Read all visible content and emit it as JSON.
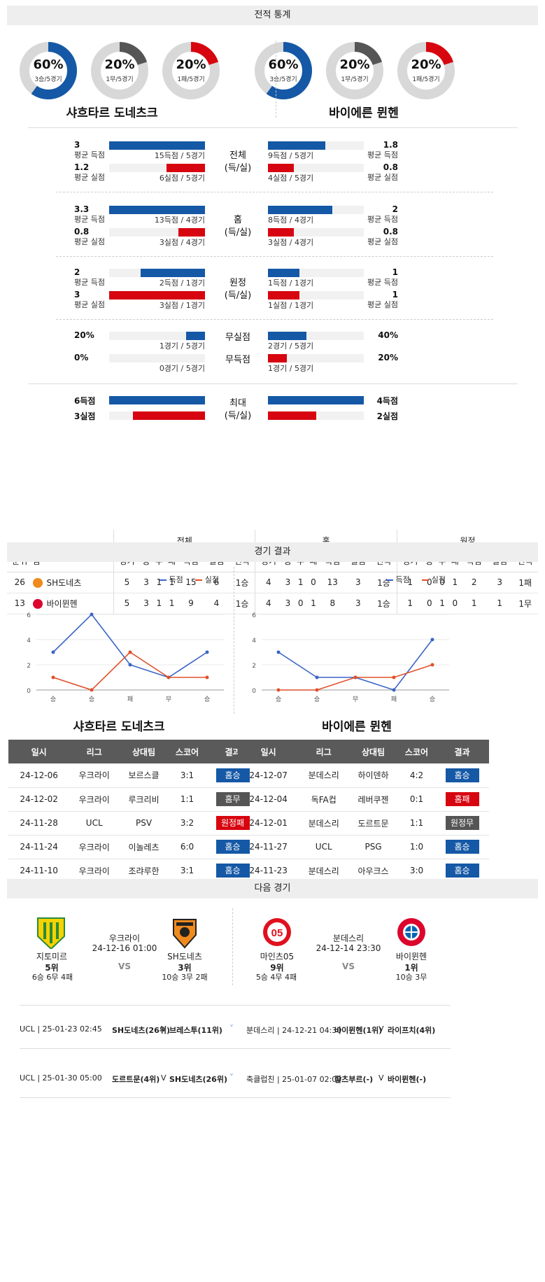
{
  "sections": {
    "stats": "전적 통계",
    "results": "경기 결과",
    "next": "다음 경기"
  },
  "donuts": {
    "home": [
      {
        "pct": "60%",
        "sub": "3승/5경기",
        "value": 0.6,
        "color": "#1558a6"
      },
      {
        "pct": "20%",
        "sub": "1무/5경기",
        "value": 0.2,
        "color": "#555555"
      },
      {
        "pct": "20%",
        "sub": "1패/5경기",
        "value": 0.2,
        "color": "#d7050f"
      }
    ],
    "away": [
      {
        "pct": "60%",
        "sub": "3승/5경기",
        "value": 0.6,
        "color": "#1558a6"
      },
      {
        "pct": "20%",
        "sub": "1무/5경기",
        "value": 0.2,
        "color": "#555555"
      },
      {
        "pct": "20%",
        "sub": "1패/5경기",
        "value": 0.2,
        "color": "#d7050f"
      }
    ]
  },
  "teams": {
    "home": "샤흐타르 도네츠크",
    "away": "바이에른 뮌헨"
  },
  "groups": [
    {
      "label": "전체\n(득/실)",
      "rows": [
        {
          "hnum": "3",
          "hlbl": "평균 득점",
          "hcap": "15득점 / 5경기",
          "hval": 1.0,
          "anum": "1.8",
          "albl": "평균 득점",
          "acap": "9득점 / 5경기",
          "aval": 0.6,
          "color": "blue"
        },
        {
          "hnum": "1.2",
          "hlbl": "평균 실점",
          "hcap": "6실점 / 5경기",
          "hval": 0.4,
          "anum": "0.8",
          "albl": "평균 실점",
          "acap": "4실점 / 5경기",
          "aval": 0.27,
          "color": "red"
        }
      ]
    },
    {
      "label": "홈\n(득/실)",
      "rows": [
        {
          "hnum": "3.3",
          "hlbl": "평균 득점",
          "hcap": "13득점 / 4경기",
          "hval": 1.0,
          "anum": "2",
          "albl": "평균 득점",
          "acap": "8득점 / 4경기",
          "aval": 0.67,
          "color": "blue"
        },
        {
          "hnum": "0.8",
          "hlbl": "평균 실점",
          "hcap": "3실점 / 4경기",
          "hval": 0.28,
          "anum": "0.8",
          "albl": "평균 실점",
          "acap": "3실점 / 4경기",
          "aval": 0.27,
          "color": "red"
        }
      ]
    },
    {
      "label": "원정\n(득/실)",
      "rows": [
        {
          "hnum": "2",
          "hlbl": "평균 득점",
          "hcap": "2득점 / 1경기",
          "hval": 0.67,
          "anum": "1",
          "albl": "평균 득점",
          "acap": "1득점 / 1경기",
          "aval": 0.33,
          "color": "blue"
        },
        {
          "hnum": "3",
          "hlbl": "평균 실점",
          "hcap": "3실점 / 1경기",
          "hval": 1.0,
          "anum": "1",
          "albl": "평균 실점",
          "acap": "1실점 / 1경기",
          "aval": 0.33,
          "color": "red"
        }
      ]
    },
    {
      "label": "",
      "rows": [
        {
          "mid": "무실점",
          "hnum": "20%",
          "hlbl": "",
          "hcap": "1경기 / 5경기",
          "hval": 0.2,
          "anum": "40%",
          "albl": "",
          "acap": "2경기 / 5경기",
          "aval": 0.4,
          "color": "blue"
        },
        {
          "mid": "무득점",
          "hnum": "0%",
          "hlbl": "",
          "hcap": "0경기 / 5경기",
          "hval": 0,
          "anum": "20%",
          "albl": "",
          "acap": "1경기 / 5경기",
          "aval": 0.2,
          "color": "red"
        }
      ]
    }
  ],
  "maxrow": {
    "label": "최대\n(득/실)",
    "h_goals": "6득점",
    "h_conc": "3실점",
    "a_goals": "4득점",
    "a_conc": "2실점",
    "h_gval": 1.0,
    "h_cval": 0.75,
    "a_gval": 1.0,
    "a_cval": 0.5
  },
  "standings": {
    "groups": [
      "전체",
      "홈",
      "원정"
    ],
    "cols": [
      "순위",
      "팀",
      "경기",
      "승",
      "무",
      "패",
      "득점",
      "실점",
      "연속",
      "경기",
      "승",
      "무",
      "패",
      "득점",
      "실점",
      "연속",
      "경기",
      "승",
      "무",
      "패",
      "득점",
      "실점",
      "연속"
    ],
    "rows": [
      {
        "rank": "26",
        "team": "SH도네츠",
        "vals": [
          "5",
          "3",
          "1",
          "1",
          "15",
          "6",
          "1승",
          "4",
          "3",
          "1",
          "0",
          "13",
          "3",
          "1승",
          "1",
          "0",
          "0",
          "1",
          "2",
          "3",
          "1패"
        ]
      },
      {
        "rank": "13",
        "team": "바이뮌헨",
        "vals": [
          "5",
          "3",
          "1",
          "1",
          "9",
          "4",
          "1승",
          "4",
          "3",
          "0",
          "1",
          "8",
          "3",
          "1승",
          "1",
          "0",
          "1",
          "0",
          "1",
          "1",
          "1무"
        ]
      }
    ]
  },
  "legend": {
    "goals": "득점",
    "conceded": "실점"
  },
  "chart_data": [
    {
      "type": "line",
      "categories": [
        "승",
        "승",
        "패",
        "무",
        "승"
      ],
      "series": [
        {
          "name": "득점",
          "values": [
            3,
            6,
            2,
            1,
            3
          ]
        },
        {
          "name": "실점",
          "values": [
            1,
            0,
            3,
            1,
            1
          ]
        }
      ],
      "yticks": [
        "0",
        "2",
        "4",
        "6"
      ],
      "ylim": [
        0,
        6
      ]
    },
    {
      "type": "line",
      "categories": [
        "승",
        "승",
        "무",
        "패",
        "승"
      ],
      "series": [
        {
          "name": "득점",
          "values": [
            3,
            1,
            1,
            0,
            4
          ]
        },
        {
          "name": "실점",
          "values": [
            0,
            0,
            1,
            1,
            2
          ]
        }
      ],
      "yticks": [
        "0",
        "2",
        "4",
        "6"
      ],
      "ylim": [
        0,
        6
      ]
    }
  ],
  "results": {
    "headers": [
      "일시",
      "리그",
      "상대팀",
      "스코어",
      "결과"
    ],
    "home": [
      {
        "date": "24-12-06",
        "league": "우크라이",
        "opp": "보르스클",
        "score": "3:1",
        "result": "홈승",
        "c": "blue"
      },
      {
        "date": "24-12-02",
        "league": "우크라이",
        "opp": "루크리비",
        "score": "1:1",
        "result": "홈무",
        "c": "gray"
      },
      {
        "date": "24-11-28",
        "league": "UCL",
        "opp": "PSV",
        "score": "3:2",
        "result": "원정패",
        "c": "red"
      },
      {
        "date": "24-11-24",
        "league": "우크라이",
        "opp": "이놀레츠",
        "score": "6:0",
        "result": "홈승",
        "c": "blue"
      },
      {
        "date": "24-11-10",
        "league": "우크라이",
        "opp": "조랴루한",
        "score": "3:1",
        "result": "홈승",
        "c": "blue"
      }
    ],
    "away": [
      {
        "date": "24-12-07",
        "league": "분데스리",
        "opp": "하이덴하",
        "score": "4:2",
        "result": "홈승",
        "c": "blue"
      },
      {
        "date": "24-12-04",
        "league": "독FA컵",
        "opp": "레버쿠젠",
        "score": "0:1",
        "result": "홈패",
        "c": "red"
      },
      {
        "date": "24-12-01",
        "league": "분데스리",
        "opp": "도르트문",
        "score": "1:1",
        "result": "원정무",
        "c": "gray"
      },
      {
        "date": "24-11-27",
        "league": "UCL",
        "opp": "PSG",
        "score": "1:0",
        "result": "홈승",
        "c": "blue"
      },
      {
        "date": "24-11-23",
        "league": "분데스리",
        "opp": "아우크스",
        "score": "3:0",
        "result": "홈승",
        "c": "blue"
      }
    ]
  },
  "next": {
    "left": {
      "league": "우크라이",
      "time": "24-12-16 01:00",
      "vs": "VS",
      "t1": "지토미르",
      "t1rank": "5위",
      "t1rec": "6승 6무 4패",
      "t2": "SH도네츠",
      "t2rank": "3위",
      "t2rec": "10승 3무 2패"
    },
    "right": {
      "league": "분데스리",
      "time": "24-12-14 23:30",
      "vs": "VS",
      "t1": "마인츠05",
      "t1rank": "9위",
      "t1rec": "5승 4무 4패",
      "t2": "바이뮌헨",
      "t2rank": "1위",
      "t2rec": "10승 3무"
    }
  },
  "upcoming": [
    {
      "left": "UCL | 25-01-23 02:45",
      "lt": "SH도네츠(26위)",
      "lv": "V",
      "lo": "브레스투(11위)",
      "right": "분데스리 | 24-12-21 04:30",
      "rt": "바이뮌헨(1위)",
      "rv": "V",
      "ro": "라이프치(4위)"
    },
    {
      "left": "UCL | 25-01-30 05:00",
      "lt": "도르트문(4위)",
      "lv": "V",
      "lo": "SH도네츠(26위)",
      "right": "축클럽친 | 25-01-07 02:00",
      "rt": "잘츠부르(-)",
      "rv": "V",
      "ro": "바이뮌헨(-)"
    }
  ]
}
